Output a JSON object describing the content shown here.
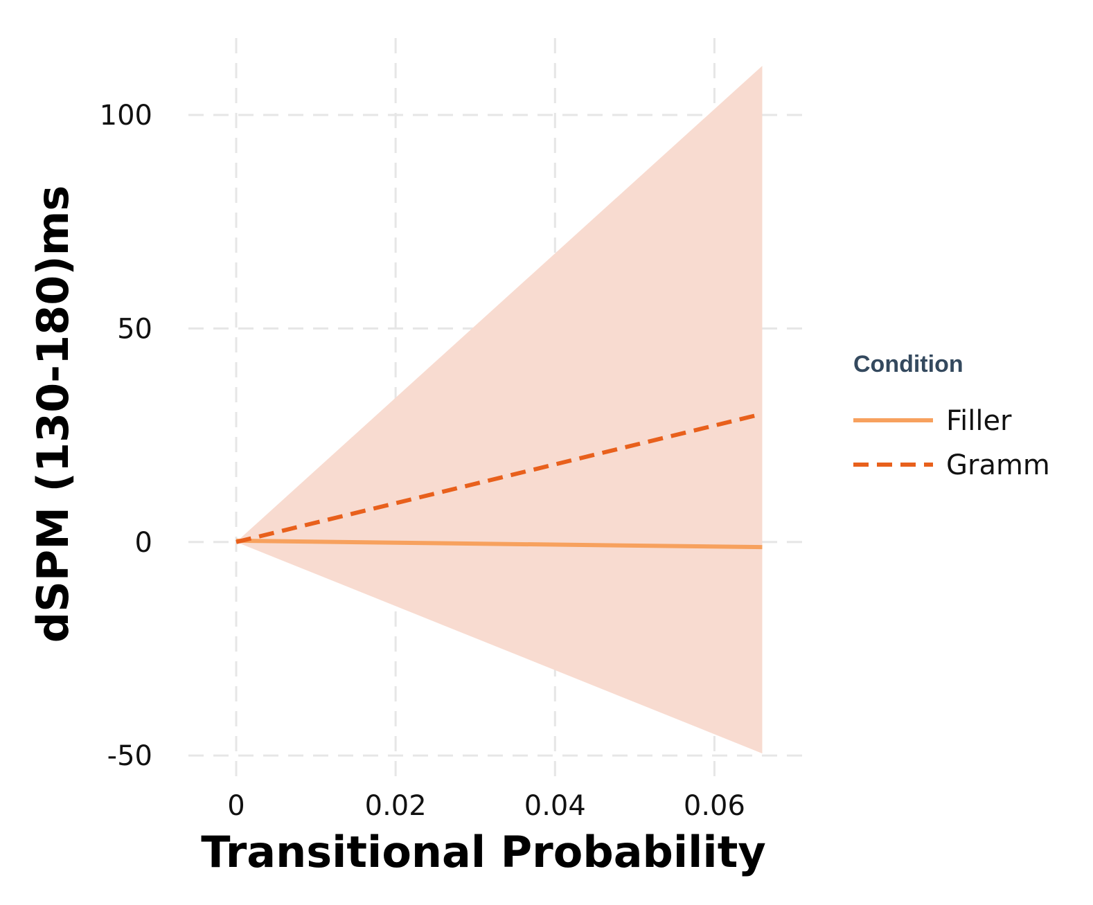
{
  "chart_data": {
    "type": "line",
    "title": "",
    "xlabel": "Transitional Probability",
    "ylabel": "dSPM (130-180)ms",
    "xlim": [
      -0.006,
      0.071
    ],
    "ylim": [
      -55,
      118
    ],
    "x_ticks": [
      0,
      0.02,
      0.04,
      0.06
    ],
    "x_tick_labels": [
      "0",
      "0.02",
      "0.04",
      "0.06"
    ],
    "y_ticks": [
      -50,
      0,
      50,
      100
    ],
    "y_tick_labels": [
      "-50",
      "0",
      "50",
      "100"
    ],
    "grid": true,
    "legend_position": "right",
    "legend_title": "Condition",
    "colors": {
      "filler": "#f7a15e",
      "gramm": "#e8601c",
      "ribbon": "#f8dbd0",
      "legend_title": "#34495e"
    },
    "series": [
      {
        "name": "Filler",
        "line_style": "solid",
        "x": [
          0,
          0.066
        ],
        "y": [
          0.3,
          -1.2
        ]
      },
      {
        "name": "Gramm",
        "line_style": "dashed",
        "x": [
          0,
          0.066
        ],
        "y": [
          0,
          30
        ],
        "ribbon_lower": [
          0,
          -49.5
        ],
        "ribbon_upper": [
          0,
          111.5
        ]
      }
    ]
  }
}
